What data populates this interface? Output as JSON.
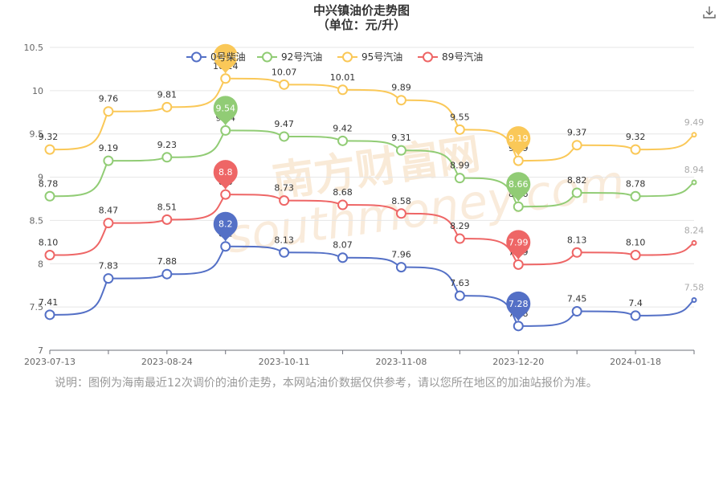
{
  "header": {
    "title": "中兴镇油价走势图",
    "subtitle": "（单位：元/升）",
    "download_icon": "download-icon"
  },
  "note": "说明：图例为海南最近12次调价的油价走势，本网站油价数据仅供参考，请以您所在地区的加油站报价为准。",
  "watermark": {
    "text_cn": "南方财富网",
    "text_en": "southmoney.com",
    "color": "#f5d9b8"
  },
  "chart_data": {
    "type": "line",
    "ylim": [
      7,
      10.5
    ],
    "yticks": [
      "7",
      "7.5",
      "8",
      "8.5",
      "9",
      "9.5",
      "10",
      "10.5"
    ],
    "xtick_labels": [
      "2023-07-13",
      "2023-08-24",
      "2023-10-11",
      "2023-11-08",
      "2023-12-20",
      "2024-01-18"
    ],
    "xtick_positions": [
      0,
      2,
      4,
      6,
      8,
      10
    ],
    "legend_position": "top",
    "grid": "horizontal",
    "series": [
      {
        "name": "0号柴油",
        "color": "#5470c6",
        "values": [
          7.41,
          7.83,
          7.88,
          8.2,
          8.13,
          8.07,
          7.96,
          7.63,
          7.28,
          7.45,
          7.4,
          7.58
        ],
        "labels": [
          "7.41",
          "7.83",
          "7.88",
          "8.2",
          "8.13",
          "8.07",
          "7.96",
          "7.63",
          "7.28",
          "7.45",
          "7.4",
          "7.58"
        ],
        "max_index": 3,
        "min_index": 8
      },
      {
        "name": "92号汽油",
        "color": "#91cc75",
        "values": [
          8.78,
          9.19,
          9.23,
          9.54,
          9.47,
          9.42,
          9.31,
          8.99,
          8.66,
          8.82,
          8.78,
          8.94
        ],
        "labels": [
          "8.78",
          "9.19",
          "9.23",
          "9.54",
          "9.47",
          "9.42",
          "9.31",
          "8.99",
          "8.66",
          "8.82",
          "8.78",
          "8.94"
        ],
        "max_index": 3,
        "min_index": 8
      },
      {
        "name": "95号汽油",
        "color": "#fac858",
        "values": [
          9.32,
          9.76,
          9.81,
          10.14,
          10.07,
          10.01,
          9.89,
          9.55,
          9.19,
          9.37,
          9.32,
          9.49
        ],
        "labels": [
          "9.32",
          "9.76",
          "9.81",
          "10.14",
          "10.07",
          "10.01",
          "9.89",
          "9.55",
          "9.19",
          "9.37",
          "9.32",
          "9.49"
        ],
        "max_index": 3,
        "min_index": 8
      },
      {
        "name": "89号汽油",
        "color": "#ee6666",
        "values": [
          8.1,
          8.47,
          8.51,
          8.8,
          8.73,
          8.68,
          8.58,
          8.29,
          7.99,
          8.13,
          8.1,
          8.24
        ],
        "labels": [
          "8.10",
          "8.47",
          "8.51",
          "8.8",
          "8.73",
          "8.68",
          "8.58",
          "8.29",
          "7.99",
          "8.13",
          "8.10",
          "8.24"
        ],
        "max_index": 3,
        "min_index": 8
      }
    ]
  }
}
